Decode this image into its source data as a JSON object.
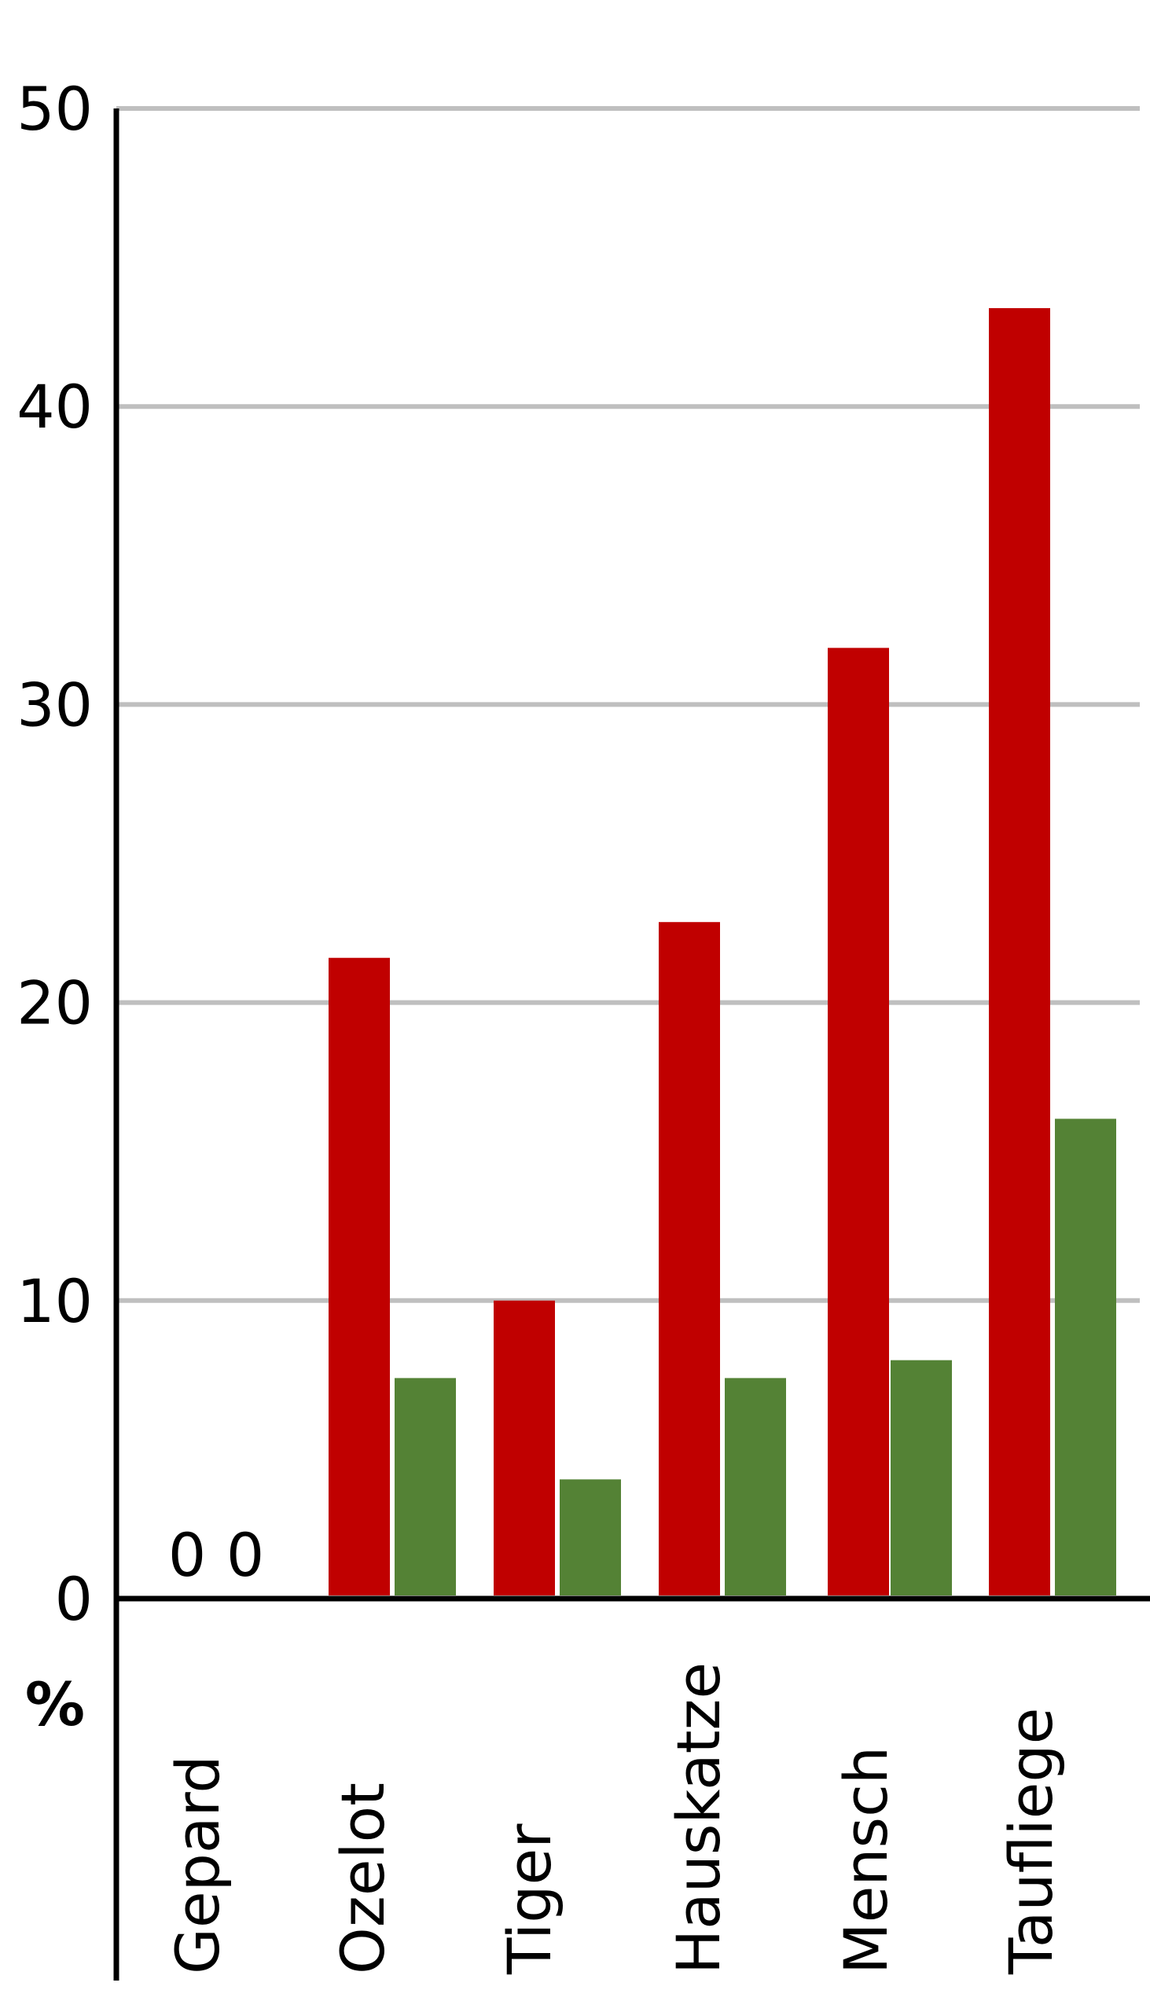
{
  "chart_data": {
    "type": "bar",
    "title": "",
    "xlabel": "",
    "ylabel": "%",
    "ylim": [
      0,
      50
    ],
    "yticks": [
      "0",
      "10",
      "20",
      "30",
      "40",
      "50"
    ],
    "grid": true,
    "categories": [
      "Gepard",
      "Ozelot",
      "Tiger",
      "Hauskatze",
      "Mensch",
      "Taufliege"
    ],
    "series": [
      {
        "values": [
          0,
          21.5,
          10,
          22.7,
          31.9,
          43.3
        ]
      },
      {
        "values": [
          0,
          7.4,
          4,
          7.4,
          8,
          16.1
        ]
      }
    ],
    "value_labels": [
      "0",
      "0"
    ],
    "colors": {
      "series": [
        "#c00000",
        "#548235"
      ],
      "grid": "#bfbfbf",
      "axis": "#000000"
    }
  }
}
